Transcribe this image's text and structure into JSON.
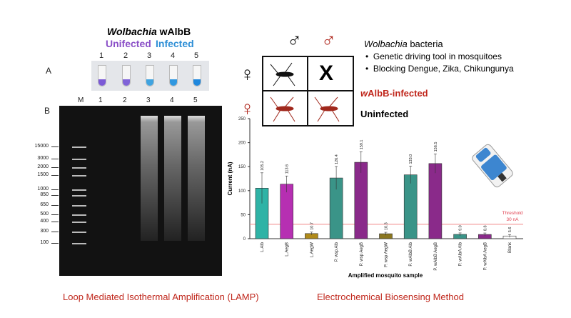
{
  "panel_a": {
    "title_italic": "Wolbachia",
    "title_rest": " wAlbB",
    "uninfected_label": "Unifected",
    "infected_label": "Infected",
    "label": "A",
    "tube_numbers": [
      "1",
      "2",
      "3",
      "4",
      "5"
    ],
    "tube_colors": [
      "#7b5ad6",
      "#7f63d8",
      "#3fa3e0",
      "#2f97e0",
      "#1f87dd"
    ]
  },
  "panel_b": {
    "label": "B",
    "lanes": [
      "M",
      "1",
      "2",
      "3",
      "4",
      "5"
    ],
    "ladder": [
      "15000",
      "3000",
      "2000",
      "1500",
      "1000",
      "850",
      "650",
      "500",
      "400",
      "300",
      "100"
    ]
  },
  "cross": {
    "male_symbol": "♂",
    "female_symbol": "♀",
    "x_mark": "X"
  },
  "info": {
    "title_italic": "Wolbachia",
    "title_rest": " bacteria",
    "bullets": [
      "Genetic driving tool in mosquitoes",
      "Blocking Dengue, Zika, Chikungunya"
    ],
    "infected_prefix": "w",
    "infected_rest": "AlbB-infected",
    "uninfected": "Uninfected"
  },
  "chart_data": {
    "type": "bar",
    "xlabel": "Amplified mosquito sample",
    "ylabel": "Current (nA)",
    "ylim": [
      0,
      250
    ],
    "yticks": [
      0,
      50,
      100,
      150,
      200,
      250
    ],
    "categories": [
      "L.Alb",
      "L.AegB",
      "L.AegW",
      "P. wsp Alb",
      "P. wsp AegB",
      "P. wsp AegW",
      "P. wAlbB Alb",
      "P. wAlbB AegB",
      "P. wAlbA Alb",
      "P. wAlbA AegB",
      "Blank"
    ],
    "values": [
      105.2,
      113.6,
      10.7,
      126.4,
      159.1,
      10.3,
      133.0,
      156.5,
      9.0,
      8.8,
      5.6
    ],
    "value_labels": [
      "105.2",
      "113.6",
      "10.7",
      "126.4",
      "159.1",
      "10.3",
      "133.0",
      "156.5",
      "9.0",
      "8.8",
      "5.6"
    ],
    "errors": [
      32,
      17,
      3,
      24,
      22,
      3,
      18,
      20,
      3,
      3,
      3
    ],
    "colors": [
      "#2fb3a6",
      "#b62fb2",
      "#b08a1a",
      "#3a9488",
      "#8a2a8a",
      "#8a7620",
      "#3a9488",
      "#8a2a8a",
      "#3a9488",
      "#8a2a8a",
      "#ffffff"
    ],
    "threshold": {
      "value": 30,
      "label_line1": "Threshold",
      "label_line2": "30 nA",
      "color": "#f08a8a"
    }
  },
  "captions": {
    "left": "Loop Mediated Isothermal Amplification (LAMP)",
    "right": "Electrochemical Biosensing Method"
  }
}
